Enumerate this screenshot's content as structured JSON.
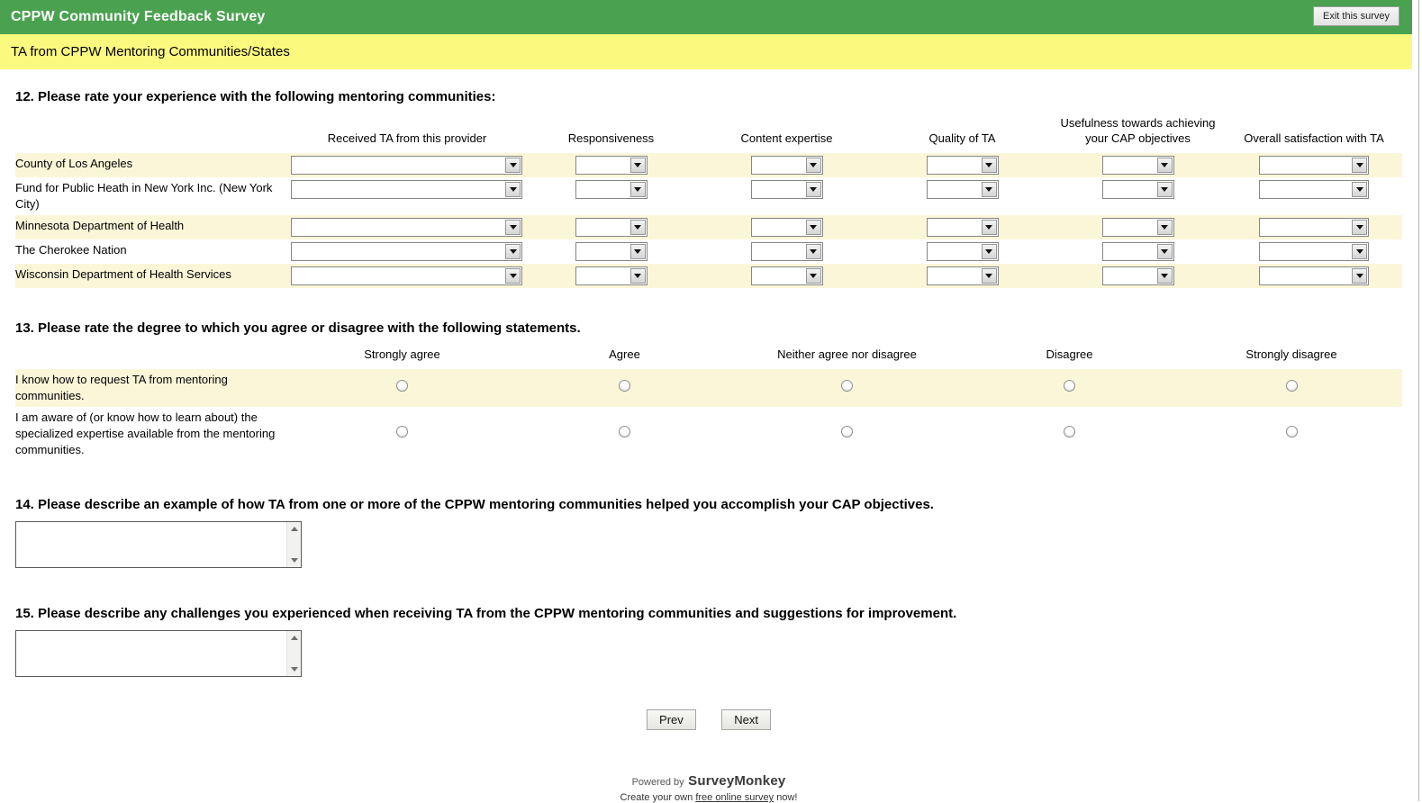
{
  "header": {
    "title": "CPPW Community Feedback Survey",
    "exit_button": "Exit this survey"
  },
  "page": {
    "title": "TA from CPPW Mentoring Communities/States"
  },
  "q12": {
    "title": "12. Please rate your experience with the following mentoring communities:",
    "columns": [
      "Received TA from this provider",
      "Responsiveness",
      "Content expertise",
      "Quality of TA",
      "Usefulness towards achieving your CAP objectives",
      "Overall satisfaction with TA"
    ],
    "rows": [
      "County of Los Angeles",
      "Fund for Public Heath in New York Inc. (New York City)",
      "Minnesota Department of Health",
      "The Cherokee Nation",
      "Wisconsin Department of Health Services"
    ],
    "selected_value": ""
  },
  "q13": {
    "title": "13. Please rate the degree to which you agree or disagree with the following statements.",
    "columns": [
      "Strongly agree",
      "Agree",
      "Neither agree nor disagree",
      "Disagree",
      "Strongly disagree"
    ],
    "rows": [
      "I know how to request TA from mentoring communities.",
      "I am aware of (or know how to learn about) the specialized expertise available from the mentoring communities."
    ]
  },
  "q14": {
    "title": "14. Please describe an example of how TA from one or more of the CPPW mentoring communities helped you accomplish your CAP objectives.",
    "value": ""
  },
  "q15": {
    "title": "15. Please describe any challenges you experienced when receiving TA from the CPPW mentoring communities and suggestions for improvement.",
    "value": ""
  },
  "nav": {
    "prev_label": "Prev",
    "next_label": "Next"
  },
  "footer": {
    "powered_by": "Powered by",
    "brand": "SurveyMonkey",
    "create_prefix": "Create your own",
    "link_text": "free online survey",
    "suffix": "now!"
  },
  "colors": {
    "header_green": "#4aa14f",
    "subheader_yellow": "#fbf97e",
    "row_band_yellow": "#fcf6d9"
  }
}
